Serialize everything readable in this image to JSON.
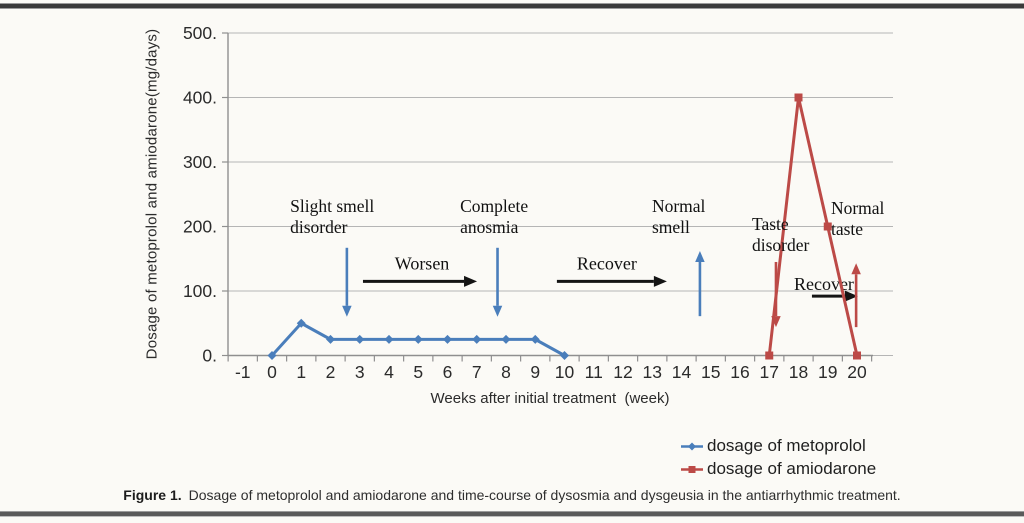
{
  "figure": {
    "caption_label": "Figure 1.",
    "caption_text": "Dosage of metoprolol and amiodarone and time-course of dysosmia and dysgeusia in the antiarrhythmic treatment."
  },
  "chart_data": {
    "type": "line",
    "title": "",
    "xlabel": "Weeks after initial treatment  (week)",
    "ylabel": "Dosage of metoprolol and amiodarone(mg/days)",
    "ylim": [
      0,
      500
    ],
    "y_ticks": [
      0,
      100,
      200,
      300,
      400,
      500
    ],
    "y_tick_suffix": ".",
    "x_ticks": [
      -1,
      0,
      1,
      2,
      3,
      4,
      5,
      6,
      7,
      8,
      9,
      10,
      11,
      12,
      13,
      14,
      15,
      16,
      17,
      18,
      19,
      20
    ],
    "grid": true,
    "legend_position": "bottom-right",
    "colors": {
      "metoprolol_blue": "#4a7ebb",
      "amiodarone_red": "#bc4a47",
      "phase_arrow_black": "#141414",
      "gridline": "#b5b5b5",
      "axis": "#8f8f8f",
      "tick_text": "#2b2b2b"
    },
    "series": [
      {
        "name": "dosage of metoprolol",
        "color": "#4a7ebb",
        "marker": "diamond",
        "x": [
          0,
          1,
          2,
          3,
          4,
          5,
          6,
          7,
          8,
          9,
          10
        ],
        "y": [
          0,
          50,
          25,
          25,
          25,
          25,
          25,
          25,
          25,
          25,
          0
        ]
      },
      {
        "name": "dosage of amiodarone",
        "color": "#bc4a47",
        "marker": "square",
        "x": [
          17,
          18,
          19,
          20
        ],
        "y": [
          0,
          400,
          200,
          0
        ]
      }
    ],
    "annotations": [
      {
        "lines": [
          "Slight smell",
          "disorder"
        ],
        "week": 0.62,
        "value": 246
      },
      {
        "lines": [
          "Complete",
          "anosmia"
        ],
        "week": 6.43,
        "value": 246
      },
      {
        "lines": [
          "Normal",
          "smell"
        ],
        "week": 12.99,
        "value": 246
      },
      {
        "lines": [
          "Taste",
          "disorder"
        ],
        "week": 16.41,
        "value": 218
      },
      {
        "lines": [
          "Normal",
          "taste"
        ],
        "week": 19.11,
        "value": 243
      }
    ],
    "phase_arrows": [
      {
        "label": "Worsen",
        "week_start": 3.11,
        "week_end": 7.01,
        "value": 115,
        "label_week": 5.13,
        "label_value": 143
      },
      {
        "label": "Recover",
        "week_start": 9.74,
        "week_end": 13.5,
        "value": 115,
        "label_week": 11.45,
        "label_value": 143
      },
      {
        "label": "Recover",
        "week_start": 18.46,
        "week_end": 20.03,
        "value": 92,
        "label_week": 18.87,
        "label_value": 111
      }
    ],
    "event_arrows": [
      {
        "direction": "down",
        "color": "#4a7ebb",
        "week": 2.56,
        "value_from": 167,
        "value_to": 60
      },
      {
        "direction": "down",
        "color": "#4a7ebb",
        "week": 7.71,
        "value_from": 167,
        "value_to": 60
      },
      {
        "direction": "up",
        "color": "#4a7ebb",
        "week": 14.63,
        "value_from": 61,
        "value_to": 162
      },
      {
        "direction": "down",
        "color": "#bc4a47",
        "week": 17.23,
        "value_from": 145,
        "value_to": 44
      },
      {
        "direction": "up",
        "color": "#bc4a47",
        "week": 19.97,
        "value_from": 44,
        "value_to": 143
      }
    ]
  }
}
